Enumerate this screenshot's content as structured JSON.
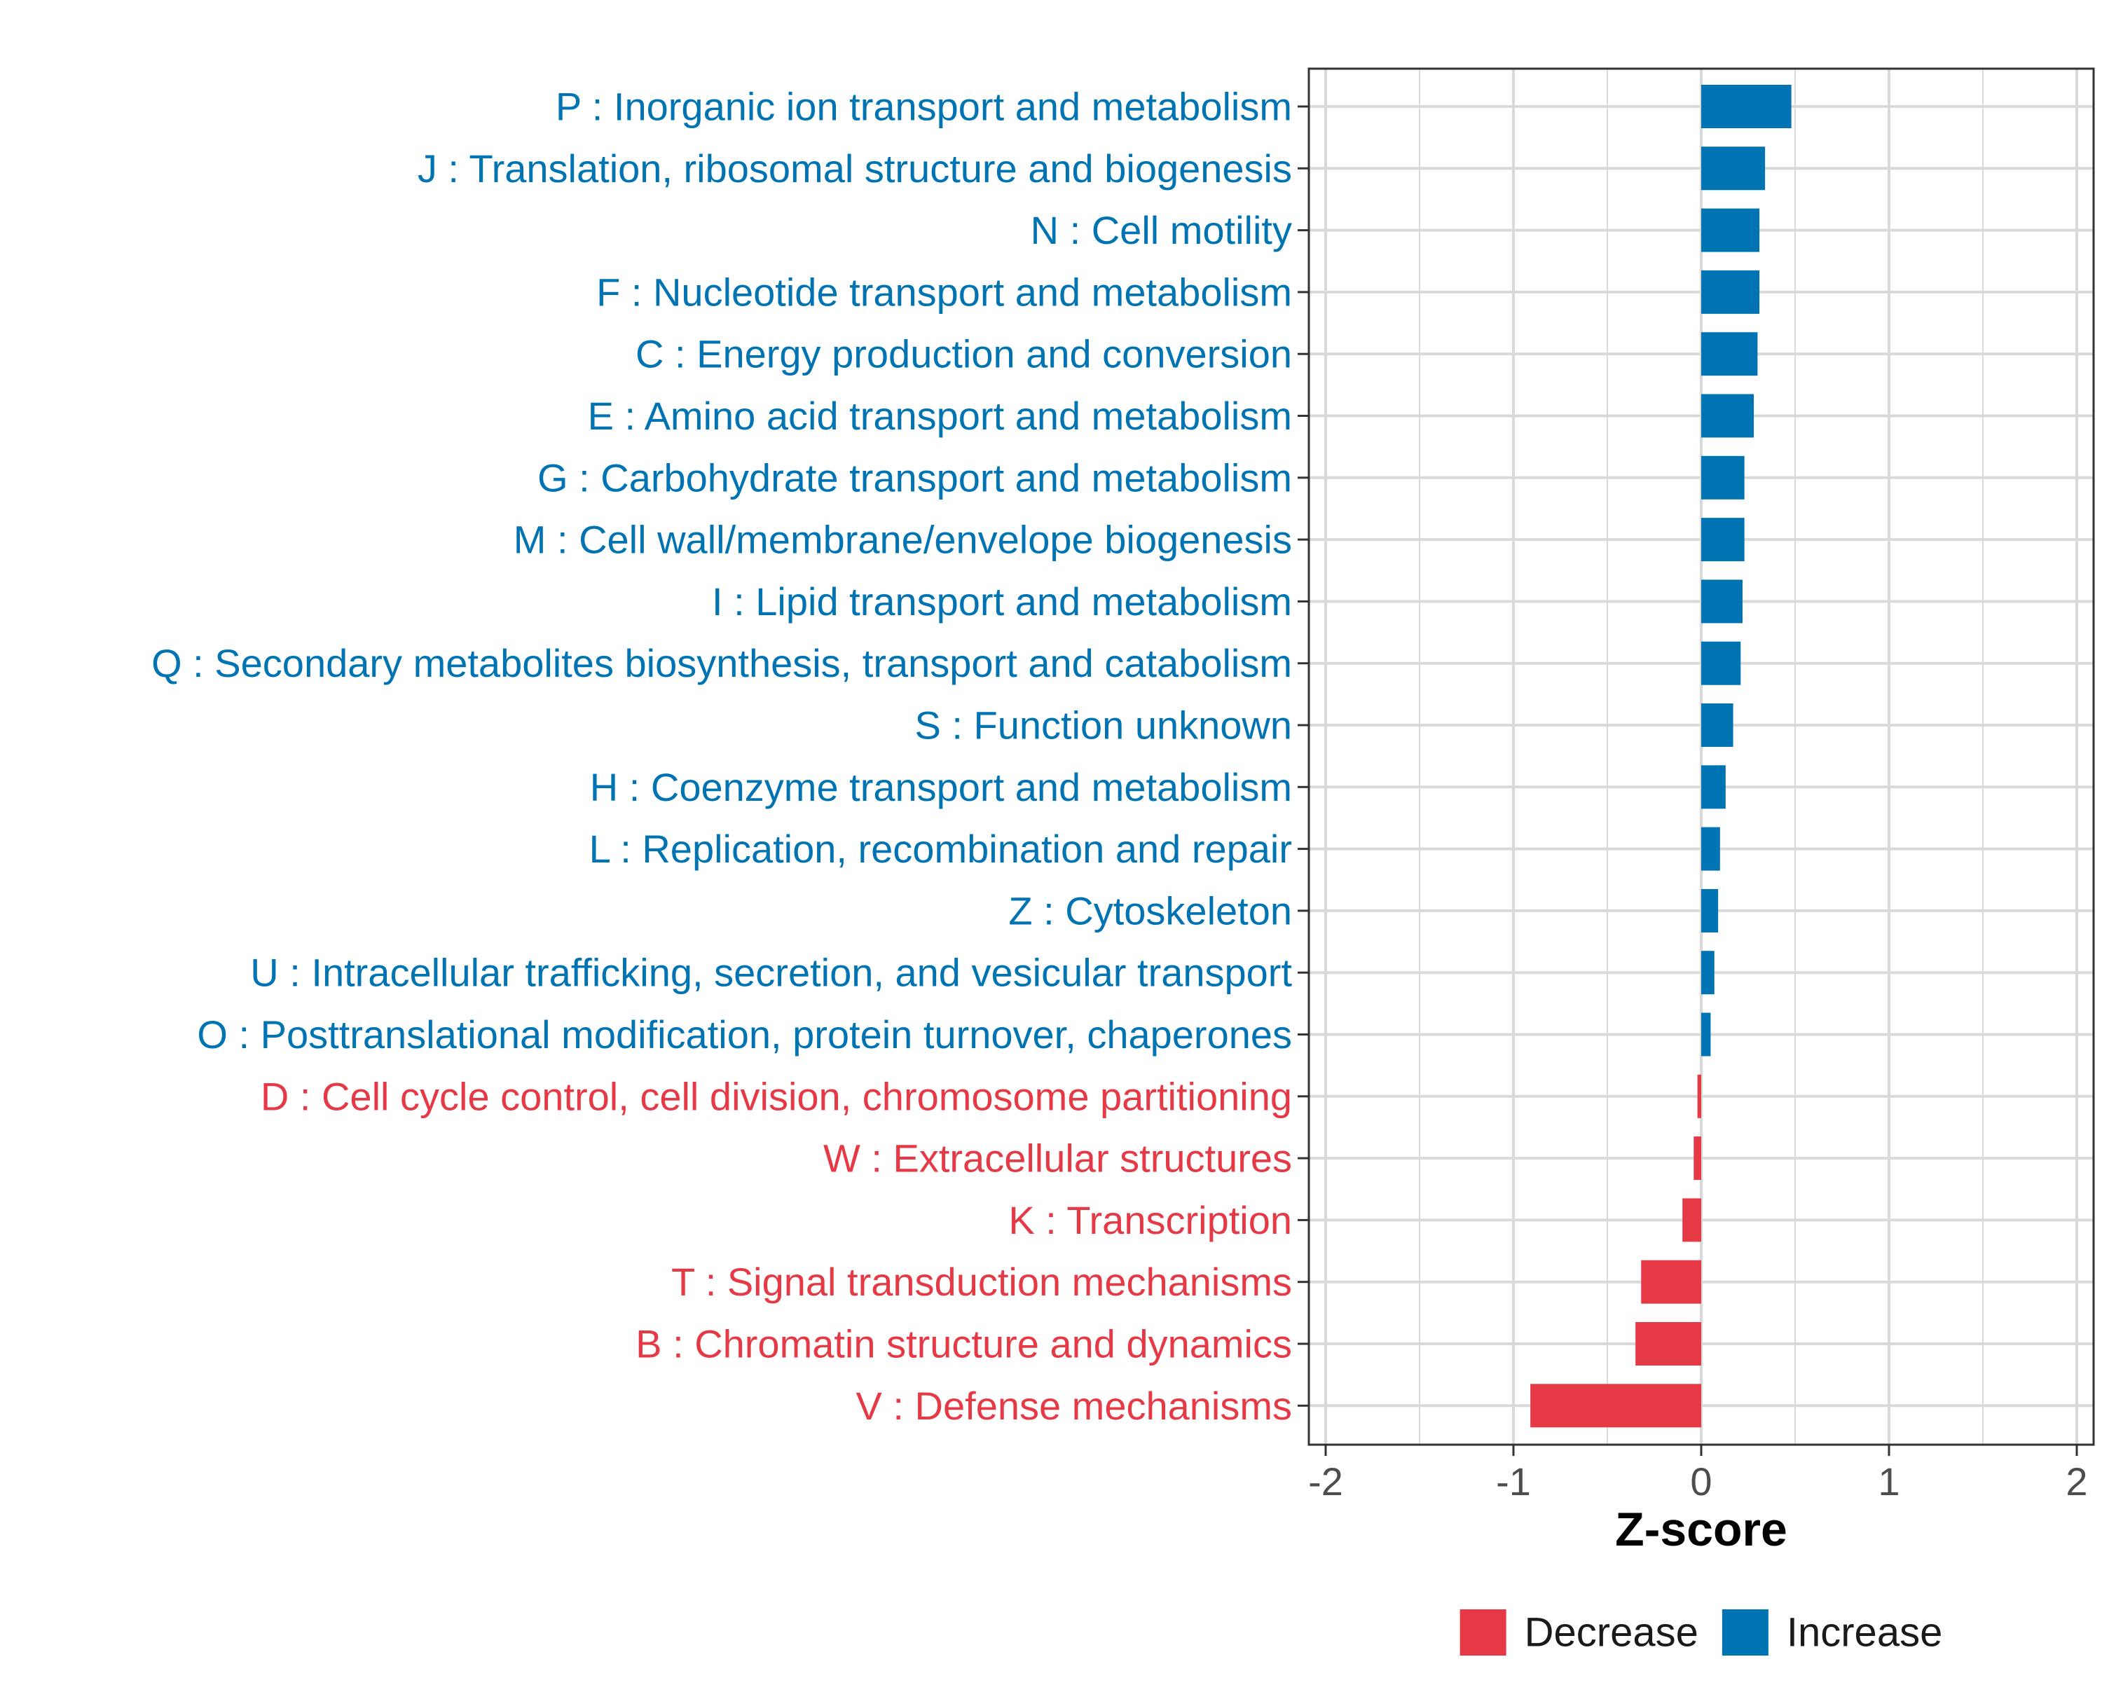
{
  "colors": {
    "increase": "#0073B3",
    "decrease": "#E63946",
    "grid": "#D9D9D9",
    "panel_border": "#333333",
    "tick_text": "#4D4D4D"
  },
  "chart_data": {
    "type": "bar",
    "orientation": "horizontal",
    "title": "",
    "xlabel": "Z-score",
    "ylabel": "",
    "xlim": [
      -2.1,
      2.1
    ],
    "xticks": [
      -2,
      -1,
      0,
      1,
      2
    ],
    "xtick_labels": [
      "-2",
      "-1",
      "0",
      "1",
      "2"
    ],
    "grid": true,
    "legend_position": "bottom",
    "legend": [
      {
        "name": "Decrease",
        "color": "#E63946"
      },
      {
        "name": "Increase",
        "color": "#0073B3"
      }
    ],
    "categories": [
      "P : Inorganic ion transport and metabolism",
      "J : Translation, ribosomal structure and biogenesis",
      "N : Cell motility",
      "F : Nucleotide transport and metabolism",
      "C : Energy production and conversion",
      "E : Amino acid transport and metabolism",
      "G : Carbohydrate transport and metabolism",
      "M : Cell wall/membrane/envelope biogenesis",
      "I : Lipid transport and metabolism",
      "Q : Secondary metabolites biosynthesis, transport and catabolism",
      "S : Function unknown",
      "H : Coenzyme transport and metabolism",
      "L : Replication, recombination and repair",
      "Z : Cytoskeleton",
      "U : Intracellular trafficking, secretion, and vesicular transport",
      "O : Posttranslational modification, protein turnover, chaperones",
      "D : Cell cycle control, cell division, chromosome partitioning",
      "W : Extracellular structures",
      "K : Transcription",
      "T : Signal transduction mechanisms",
      "B : Chromatin structure and dynamics",
      "V : Defense mechanisms"
    ],
    "values": [
      0.48,
      0.34,
      0.31,
      0.31,
      0.3,
      0.28,
      0.23,
      0.23,
      0.22,
      0.21,
      0.17,
      0.13,
      0.1,
      0.09,
      0.07,
      0.05,
      -0.02,
      -0.04,
      -0.1,
      -0.32,
      -0.35,
      -0.91
    ],
    "groups": [
      "Increase",
      "Increase",
      "Increase",
      "Increase",
      "Increase",
      "Increase",
      "Increase",
      "Increase",
      "Increase",
      "Increase",
      "Increase",
      "Increase",
      "Increase",
      "Increase",
      "Increase",
      "Increase",
      "Decrease",
      "Decrease",
      "Decrease",
      "Decrease",
      "Decrease",
      "Decrease"
    ]
  }
}
